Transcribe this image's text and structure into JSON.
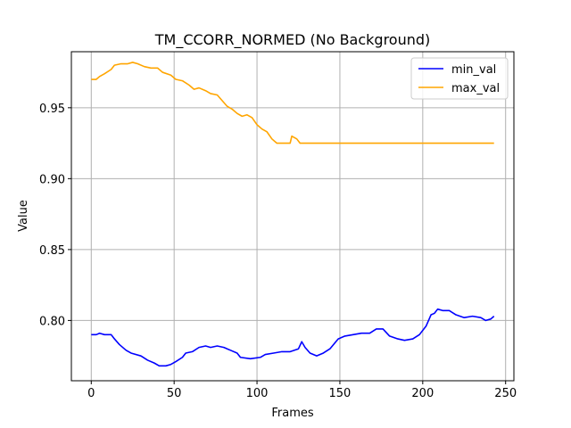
{
  "chart_data": {
    "type": "line",
    "title": "TM_CCORR_NORMED (No Background)",
    "xlabel": "Frames",
    "ylabel": "Value",
    "xlim": [
      -12,
      255
    ],
    "ylim": [
      0.7575,
      0.9895
    ],
    "x_ticks": [
      0,
      50,
      100,
      150,
      200,
      250
    ],
    "y_ticks": [
      0.8,
      0.85,
      0.9,
      0.95
    ],
    "x_tick_labels": [
      "0",
      "50",
      "100",
      "150",
      "200",
      "250"
    ],
    "y_tick_labels": [
      "0.80",
      "0.85",
      "0.90",
      "0.95"
    ],
    "grid": true,
    "legend_position": "top-right",
    "series": [
      {
        "name": "min_val",
        "color": "#0000ff",
        "points": [
          [
            0,
            0.79
          ],
          [
            3,
            0.79
          ],
          [
            5,
            0.791
          ],
          [
            8,
            0.79
          ],
          [
            12,
            0.79
          ],
          [
            14,
            0.787
          ],
          [
            17,
            0.783
          ],
          [
            21,
            0.779
          ],
          [
            24,
            0.777
          ],
          [
            30,
            0.775
          ],
          [
            34,
            0.772
          ],
          [
            38,
            0.77
          ],
          [
            41,
            0.768
          ],
          [
            45,
            0.768
          ],
          [
            48,
            0.769
          ],
          [
            51,
            0.771
          ],
          [
            55,
            0.774
          ],
          [
            57,
            0.777
          ],
          [
            61,
            0.778
          ],
          [
            65,
            0.781
          ],
          [
            69,
            0.782
          ],
          [
            72,
            0.781
          ],
          [
            76,
            0.782
          ],
          [
            80,
            0.781
          ],
          [
            84,
            0.779
          ],
          [
            88,
            0.777
          ],
          [
            90,
            0.774
          ],
          [
            96,
            0.773
          ],
          [
            102,
            0.774
          ],
          [
            105,
            0.776
          ],
          [
            110,
            0.777
          ],
          [
            115,
            0.778
          ],
          [
            120,
            0.778
          ],
          [
            125,
            0.78
          ],
          [
            127,
            0.785
          ],
          [
            129,
            0.781
          ],
          [
            132,
            0.777
          ],
          [
            136,
            0.775
          ],
          [
            140,
            0.777
          ],
          [
            144,
            0.78
          ],
          [
            149,
            0.787
          ],
          [
            153,
            0.789
          ],
          [
            158,
            0.79
          ],
          [
            163,
            0.791
          ],
          [
            168,
            0.791
          ],
          [
            172,
            0.794
          ],
          [
            176,
            0.794
          ],
          [
            180,
            0.789
          ],
          [
            185,
            0.787
          ],
          [
            189,
            0.786
          ],
          [
            194,
            0.787
          ],
          [
            198,
            0.79
          ],
          [
            202,
            0.796
          ],
          [
            205,
            0.804
          ],
          [
            207,
            0.805
          ],
          [
            209,
            0.808
          ],
          [
            212,
            0.807
          ],
          [
            216,
            0.807
          ],
          [
            220,
            0.804
          ],
          [
            225,
            0.802
          ],
          [
            230,
            0.803
          ],
          [
            235,
            0.802
          ],
          [
            238,
            0.8
          ],
          [
            241,
            0.801
          ],
          [
            243,
            0.803
          ]
        ]
      },
      {
        "name": "max_val",
        "color": "#ffa500",
        "points": [
          [
            0,
            0.97
          ],
          [
            3,
            0.97
          ],
          [
            5,
            0.972
          ],
          [
            8,
            0.974
          ],
          [
            12,
            0.977
          ],
          [
            14,
            0.98
          ],
          [
            18,
            0.981
          ],
          [
            22,
            0.981
          ],
          [
            25,
            0.982
          ],
          [
            28,
            0.981
          ],
          [
            32,
            0.979
          ],
          [
            36,
            0.978
          ],
          [
            40,
            0.978
          ],
          [
            43,
            0.975
          ],
          [
            48,
            0.973
          ],
          [
            51,
            0.97
          ],
          [
            55,
            0.969
          ],
          [
            59,
            0.966
          ],
          [
            62,
            0.963
          ],
          [
            65,
            0.964
          ],
          [
            69,
            0.962
          ],
          [
            72,
            0.96
          ],
          [
            76,
            0.959
          ],
          [
            79,
            0.955
          ],
          [
            82,
            0.951
          ],
          [
            85,
            0.949
          ],
          [
            88,
            0.946
          ],
          [
            91,
            0.944
          ],
          [
            94,
            0.945
          ],
          [
            97,
            0.943
          ],
          [
            100,
            0.938
          ],
          [
            103,
            0.935
          ],
          [
            106,
            0.933
          ],
          [
            109,
            0.928
          ],
          [
            112,
            0.925
          ],
          [
            116,
            0.925
          ],
          [
            120,
            0.925
          ],
          [
            121,
            0.93
          ],
          [
            124,
            0.928
          ],
          [
            126,
            0.925
          ],
          [
            135,
            0.925
          ],
          [
            150,
            0.925
          ],
          [
            165,
            0.925
          ],
          [
            180,
            0.925
          ],
          [
            195,
            0.925
          ],
          [
            210,
            0.925
          ],
          [
            225,
            0.925
          ],
          [
            243,
            0.925
          ]
        ]
      }
    ]
  }
}
